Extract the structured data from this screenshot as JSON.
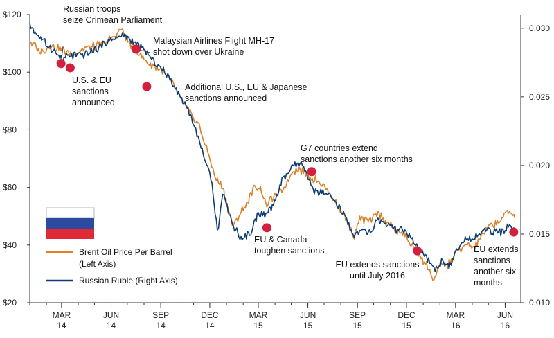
{
  "chart_data": {
    "type": "line",
    "colors": {
      "oil": "#d9822b",
      "ruble": "#0d3c73",
      "marker": "#d3203f",
      "axis": "#333333"
    },
    "left_axis": {
      "ylim": [
        20,
        120
      ],
      "ticks": [
        20,
        40,
        60,
        80,
        100,
        120
      ],
      "tick_labels": [
        "$20",
        "$40",
        "$60",
        "$80",
        "$100",
        "$120"
      ]
    },
    "right_axis": {
      "ylim": [
        0.01,
        0.031
      ],
      "ticks": [
        0.01,
        0.015,
        0.02,
        0.025,
        0.03
      ],
      "tick_labels": [
        "0.010",
        "0.015",
        "0.020",
        "0.025",
        "0.030"
      ]
    },
    "x_axis": {
      "range": [
        "2014-01-01",
        "2016-06-30"
      ],
      "ticks": [
        {
          "date": "2014-03-01",
          "month": "MAR",
          "year": "14"
        },
        {
          "date": "2014-06-01",
          "month": "JUN",
          "year": "14"
        },
        {
          "date": "2014-09-01",
          "month": "SEP",
          "year": "14"
        },
        {
          "date": "2014-12-01",
          "month": "DEC",
          "year": "14"
        },
        {
          "date": "2015-03-01",
          "month": "MAR",
          "year": "15"
        },
        {
          "date": "2015-06-01",
          "month": "JUN",
          "year": "15"
        },
        {
          "date": "2015-09-01",
          "month": "SEP",
          "year": "15"
        },
        {
          "date": "2015-12-01",
          "month": "DEC",
          "year": "15"
        },
        {
          "date": "2016-03-01",
          "month": "MAR",
          "year": "16"
        },
        {
          "date": "2016-06-01",
          "month": "JUN",
          "year": "16"
        }
      ]
    },
    "series": [
      {
        "name": "oil",
        "axis": "left",
        "points": [
          [
            "2014-01-01",
            111
          ],
          [
            "2014-01-20",
            107
          ],
          [
            "2014-02-10",
            109
          ],
          [
            "2014-03-01",
            108
          ],
          [
            "2014-03-20",
            106
          ],
          [
            "2014-04-10",
            108
          ],
          [
            "2014-05-01",
            109
          ],
          [
            "2014-05-20",
            110
          ],
          [
            "2014-06-10",
            113
          ],
          [
            "2014-06-20",
            115
          ],
          [
            "2014-07-05",
            110
          ],
          [
            "2014-07-20",
            107
          ],
          [
            "2014-08-10",
            103
          ],
          [
            "2014-09-01",
            101
          ],
          [
            "2014-09-20",
            97
          ],
          [
            "2014-10-10",
            90
          ],
          [
            "2014-10-25",
            86
          ],
          [
            "2014-11-10",
            82
          ],
          [
            "2014-11-28",
            72
          ],
          [
            "2014-12-10",
            64
          ],
          [
            "2014-12-25",
            60
          ],
          [
            "2015-01-13",
            46
          ],
          [
            "2015-01-30",
            52
          ],
          [
            "2015-02-10",
            55
          ],
          [
            "2015-02-20",
            60
          ],
          [
            "2015-03-05",
            60
          ],
          [
            "2015-03-15",
            54
          ],
          [
            "2015-03-25",
            56
          ],
          [
            "2015-04-10",
            58
          ],
          [
            "2015-04-25",
            62
          ],
          [
            "2015-05-05",
            66
          ],
          [
            "2015-05-20",
            66
          ],
          [
            "2015-06-10",
            63
          ],
          [
            "2015-06-30",
            61
          ],
          [
            "2015-07-15",
            57
          ],
          [
            "2015-07-31",
            52
          ],
          [
            "2015-08-15",
            48
          ],
          [
            "2015-08-25",
            43
          ],
          [
            "2015-09-05",
            49
          ],
          [
            "2015-09-25",
            48
          ],
          [
            "2015-10-10",
            51
          ],
          [
            "2015-10-25",
            48
          ],
          [
            "2015-11-10",
            45
          ],
          [
            "2015-11-25",
            44
          ],
          [
            "2015-12-10",
            40
          ],
          [
            "2015-12-25",
            37
          ],
          [
            "2016-01-10",
            32
          ],
          [
            "2016-01-20",
            28
          ],
          [
            "2016-02-05",
            34
          ],
          [
            "2016-02-15",
            33
          ],
          [
            "2016-03-01",
            37
          ],
          [
            "2016-03-20",
            40
          ],
          [
            "2016-04-05",
            39
          ],
          [
            "2016-04-25",
            45
          ],
          [
            "2016-05-10",
            47
          ],
          [
            "2016-05-25",
            49
          ],
          [
            "2016-06-08",
            52
          ],
          [
            "2016-06-20",
            50
          ]
        ]
      },
      {
        "name": "ruble",
        "axis": "right",
        "points": [
          [
            "2014-01-01",
            0.0302
          ],
          [
            "2014-01-20",
            0.0293
          ],
          [
            "2014-02-10",
            0.0285
          ],
          [
            "2014-03-01",
            0.0278
          ],
          [
            "2014-03-20",
            0.028
          ],
          [
            "2014-04-10",
            0.0281
          ],
          [
            "2014-05-01",
            0.0284
          ],
          [
            "2014-05-20",
            0.0289
          ],
          [
            "2014-06-10",
            0.0293
          ],
          [
            "2014-06-25",
            0.0295
          ],
          [
            "2014-07-05",
            0.0292
          ],
          [
            "2014-07-20",
            0.0288
          ],
          [
            "2014-08-10",
            0.028
          ],
          [
            "2014-09-01",
            0.0271
          ],
          [
            "2014-09-20",
            0.0262
          ],
          [
            "2014-10-10",
            0.0249
          ],
          [
            "2014-10-25",
            0.0239
          ],
          [
            "2014-11-10",
            0.0219
          ],
          [
            "2014-11-28",
            0.0198
          ],
          [
            "2014-12-05",
            0.0185
          ],
          [
            "2014-12-16",
            0.0152
          ],
          [
            "2014-12-25",
            0.018
          ],
          [
            "2015-01-15",
            0.0155
          ],
          [
            "2015-01-30",
            0.0146
          ],
          [
            "2015-02-15",
            0.0151
          ],
          [
            "2015-03-01",
            0.0166
          ],
          [
            "2015-03-15",
            0.0163
          ],
          [
            "2015-03-30",
            0.0172
          ],
          [
            "2015-04-15",
            0.019
          ],
          [
            "2015-05-05",
            0.0199
          ],
          [
            "2015-05-20",
            0.0202
          ],
          [
            "2015-06-10",
            0.0182
          ],
          [
            "2015-06-30",
            0.018
          ],
          [
            "2015-07-15",
            0.0176
          ],
          [
            "2015-07-31",
            0.0168
          ],
          [
            "2015-08-15",
            0.0158
          ],
          [
            "2015-08-25",
            0.0149
          ],
          [
            "2015-09-10",
            0.0152
          ],
          [
            "2015-09-25",
            0.0151
          ],
          [
            "2015-10-10",
            0.0161
          ],
          [
            "2015-10-25",
            0.0157
          ],
          [
            "2015-11-10",
            0.0153
          ],
          [
            "2015-11-25",
            0.0153
          ],
          [
            "2015-12-10",
            0.0146
          ],
          [
            "2015-12-25",
            0.0138
          ],
          [
            "2016-01-10",
            0.0131
          ],
          [
            "2016-01-21",
            0.0124
          ],
          [
            "2016-02-05",
            0.013
          ],
          [
            "2016-02-20",
            0.0128
          ],
          [
            "2016-03-05",
            0.0139
          ],
          [
            "2016-03-20",
            0.0147
          ],
          [
            "2016-04-05",
            0.0148
          ],
          [
            "2016-04-25",
            0.0153
          ],
          [
            "2016-05-10",
            0.0152
          ],
          [
            "2016-05-25",
            0.0151
          ],
          [
            "2016-06-08",
            0.0156
          ],
          [
            "2016-06-20",
            0.0154
          ]
        ]
      }
    ],
    "legend": {
      "placement": "bottom-left",
      "entries": [
        {
          "series": "oil",
          "lines": [
            "Brent Oil Price Per Barrel",
            "(Left Axis)"
          ]
        },
        {
          "series": "ruble",
          "lines": [
            "Russian Ruble (Right Axis)"
          ]
        }
      ]
    },
    "events": [
      {
        "date": "2014-02-28",
        "price": 103,
        "lines": [
          "Russian troops",
          "seize Crimean Parliament"
        ]
      },
      {
        "date": "2014-03-17",
        "price": 101.5,
        "lines": [
          "U.S. & EU",
          "sanctions",
          "announced"
        ]
      },
      {
        "date": "2014-07-17",
        "price": 108,
        "lines": [
          "Malaysian Airlines Flight MH-17",
          "shot down over Ukraine"
        ]
      },
      {
        "date": "2014-08-06",
        "price": 95,
        "lines": [
          "Additional U.S., EU & Japanese",
          "sanctions announced"
        ]
      },
      {
        "date": "2015-03-17",
        "price": 46,
        "lines": [
          "EU & Canada",
          "toughen sanctions"
        ]
      },
      {
        "date": "2015-06-08",
        "price": 65.5,
        "lines": [
          "G7 countries extend",
          "sanctions another six months"
        ]
      },
      {
        "date": "2015-12-21",
        "price": 38,
        "lines": [
          "EU extends sanctions",
          "until July 2016"
        ]
      },
      {
        "date": "2016-06-17",
        "price": 44.5,
        "lines": [
          "EU extends",
          "sanctions",
          "another six",
          "months"
        ]
      }
    ]
  }
}
